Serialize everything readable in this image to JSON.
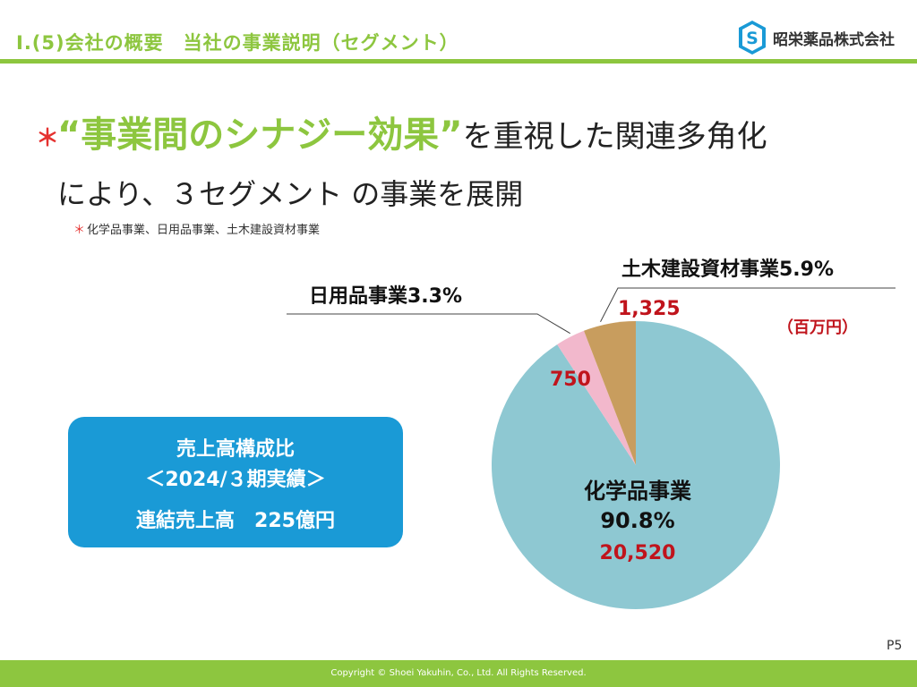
{
  "header": {
    "title": "Ⅰ.(5)会社の概要　当社の事業説明（セグメント）",
    "company": "昭栄薬品株式会社"
  },
  "headline": {
    "star": "＊",
    "emphasis": "“事業間のシナジー効果”",
    "rest": "を重視した関連多角化",
    "line2": "により、３セグメント の事業を展開"
  },
  "footnote": {
    "mark": "＊",
    "text": "化学品事業、日用品事業、土木建設資材事業"
  },
  "info_box": {
    "line1": "売上高構成比",
    "line2": "＜2024/３期実績＞",
    "line3": "連結売上高　225億円"
  },
  "chart_data": {
    "type": "pie",
    "unit": "（百万円）",
    "slices": [
      {
        "name": "化学品事業",
        "percent": "90.8%",
        "value": 20520,
        "value_label": "20,520",
        "color": "#8EC8D2"
      },
      {
        "name": "日用品事業",
        "percent": "3.3%",
        "value": 750,
        "value_label": "750",
        "color": "#F2B8CC"
      },
      {
        "name": "土木建設資材事業",
        "percent": "5.9%",
        "value": 1325,
        "value_label": "1,325",
        "color": "#C89D5E"
      }
    ]
  },
  "page_number": "P5",
  "footer": {
    "copyright": "Copyright © Shoei Yakuhin, Co., Ltd. All Rights Reserved."
  },
  "colors": {
    "accent_green": "#8DC63F",
    "box_blue": "#1A9AD6",
    "value_red": "#C0141C"
  }
}
